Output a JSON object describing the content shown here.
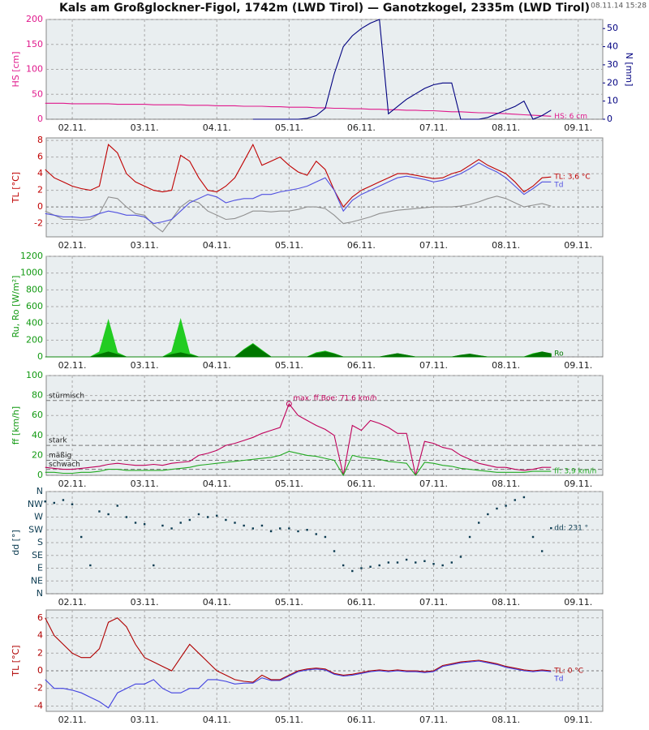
{
  "chart_data": {
    "type": "multi-panel",
    "title": "Kals am Großglockner-Figol, 1742m (LWD Tirol) — Ganotzkogel, 2335m (LWD Tirol)",
    "timestamp": "08.11.14 15:28",
    "xlim": [
      1.64,
      9.34
    ],
    "xticks": [
      {
        "value": 2,
        "label": "02.11."
      },
      {
        "value": 3,
        "label": "03.11."
      },
      {
        "value": 4,
        "label": "04.11."
      },
      {
        "value": 5,
        "label": "05.11."
      },
      {
        "value": 6,
        "label": "06.11."
      },
      {
        "value": 7,
        "label": "07.11."
      },
      {
        "value": 8,
        "label": "08.11."
      },
      {
        "value": 9,
        "label": "09.11."
      }
    ],
    "x": [
      1.625,
      1.75,
      1.875,
      2,
      2.125,
      2.25,
      2.375,
      2.5,
      2.625,
      2.75,
      2.875,
      3,
      3.125,
      3.25,
      3.375,
      3.5,
      3.625,
      3.75,
      3.875,
      4,
      4.125,
      4.25,
      4.375,
      4.5,
      4.625,
      4.75,
      4.875,
      5,
      5.125,
      5.25,
      5.375,
      5.5,
      5.625,
      5.75,
      5.875,
      6,
      6.125,
      6.25,
      6.375,
      6.5,
      6.625,
      6.75,
      6.875,
      7,
      7.125,
      7.25,
      7.375,
      7.5,
      7.625,
      7.75,
      7.875,
      8,
      8.125,
      8.25,
      8.375,
      8.5,
      8.625
    ],
    "grid": true,
    "panels": [
      {
        "type": "line",
        "ylabel": "HS [cm]",
        "color": "#e0198c",
        "ylim": [
          0,
          200
        ],
        "yticks": [
          0,
          50,
          100,
          150,
          200
        ],
        "y2label": "N [mm]",
        "y2color": "#000080",
        "y2lim": [
          0,
          55
        ],
        "y2ticks": [
          0,
          10,
          20,
          30,
          40,
          50
        ],
        "series": [
          {
            "name": "HS: 6 cm",
            "color": "#e0198c",
            "values": [
              32,
              32,
              32,
              31,
              31,
              31,
              31,
              31,
              30,
              30,
              30,
              30,
              29,
              29,
              29,
              29,
              28,
              28,
              28,
              27,
              27,
              27,
              26,
              26,
              26,
              25,
              25,
              24,
              24,
              24,
              23,
              23,
              22,
              22,
              21,
              21,
              20,
              20,
              19,
              19,
              18,
              18,
              17,
              17,
              16,
              15,
              15,
              14,
              13,
              13,
              12,
              11,
              10,
              9,
              8,
              7,
              6
            ]
          },
          {
            "color": "#000080",
            "axis": "y2",
            "values": [
              null,
              null,
              null,
              null,
              null,
              null,
              null,
              null,
              null,
              null,
              null,
              null,
              null,
              null,
              null,
              null,
              null,
              null,
              null,
              null,
              null,
              null,
              null,
              0,
              0,
              0,
              0,
              0,
              0,
              0.5,
              2,
              6,
              25,
              40,
              46,
              50,
              53,
              55,
              3,
              7,
              11,
              14,
              17,
              19,
              20,
              20,
              0,
              0,
              0,
              1,
              3,
              5,
              7,
              10,
              0,
              2,
              5
            ]
          }
        ]
      },
      {
        "type": "line",
        "ylabel": "TL [°C]",
        "color": "#c00000",
        "ylim": [
          -3.6,
          8.3
        ],
        "yticks": [
          -2,
          0,
          2,
          4,
          6,
          8
        ],
        "series": [
          {
            "color": "#909090",
            "values": [
              -0.5,
              -1.0,
              -1.5,
              -1.5,
              -1.6,
              -1.5,
              -0.8,
              1.2,
              1.0,
              0.0,
              -0.8,
              -1.0,
              -2.2,
              -3.0,
              -1.5,
              0.0,
              0.8,
              0.5,
              -0.5,
              -1.0,
              -1.5,
              -1.4,
              -1.0,
              -0.5,
              -0.5,
              -0.6,
              -0.5,
              -0.5,
              -0.3,
              0.0,
              0.0,
              -0.2,
              -1.0,
              -2.0,
              -1.8,
              -1.5,
              -1.2,
              -0.8,
              -0.6,
              -0.4,
              -0.3,
              -0.2,
              -0.1,
              0.0,
              0.0,
              0.0,
              0.1,
              0.3,
              0.6,
              1.0,
              1.3,
              1.0,
              0.5,
              0.0,
              0.2,
              0.4,
              0.1
            ]
          },
          {
            "name": "TL: 3,6 °C",
            "color": "#c00000",
            "values": [
              4.5,
              3.5,
              3.0,
              2.5,
              2.2,
              2.0,
              2.5,
              7.5,
              6.5,
              4.0,
              3.0,
              2.5,
              2.0,
              1.8,
              2.0,
              6.2,
              5.5,
              3.5,
              2.0,
              1.8,
              2.5,
              3.5,
              5.5,
              7.5,
              5.0,
              5.5,
              6.0,
              5.0,
              4.2,
              3.8,
              5.5,
              4.5,
              2.0,
              0.0,
              1.2,
              2.0,
              2.5,
              3.0,
              3.5,
              4.0,
              4.0,
              3.8,
              3.6,
              3.4,
              3.5,
              4.0,
              4.3,
              5.0,
              5.7,
              5.0,
              4.5,
              4.0,
              3.0,
              1.8,
              2.5,
              3.5,
              3.6
            ]
          },
          {
            "name": "Td",
            "color": "#5050e0",
            "values": [
              -0.8,
              -1.0,
              -1.2,
              -1.2,
              -1.3,
              -1.2,
              -0.8,
              -0.5,
              -0.7,
              -1.0,
              -1.0,
              -1.2,
              -2.0,
              -1.8,
              -1.5,
              -0.5,
              0.5,
              1.0,
              1.5,
              1.2,
              0.5,
              0.8,
              1.0,
              1.0,
              1.5,
              1.5,
              1.8,
              2.0,
              2.2,
              2.5,
              3.0,
              3.5,
              2.0,
              -0.5,
              0.8,
              1.5,
              2.0,
              2.5,
              3.0,
              3.5,
              3.7,
              3.5,
              3.3,
              3.0,
              3.2,
              3.6,
              4.0,
              4.6,
              5.3,
              4.7,
              4.2,
              3.5,
              2.5,
              1.5,
              2.2,
              3.0,
              3.0
            ]
          }
        ]
      },
      {
        "type": "area",
        "ylabel": "Ru, Ro [W/m²]",
        "color": "#119911",
        "ylim": [
          0,
          1200
        ],
        "yticks": [
          0,
          200,
          400,
          600,
          800,
          1000,
          1200
        ],
        "series": [
          {
            "color": "#22cc22",
            "values": [
              0,
              0,
              0,
              0,
              0,
              0,
              60,
              440,
              50,
              0,
              0,
              0,
              0,
              0,
              60,
              450,
              40,
              0,
              0,
              0,
              0,
              0,
              90,
              160,
              80,
              0,
              0,
              0,
              0,
              0,
              50,
              70,
              40,
              0,
              0,
              0,
              0,
              0,
              20,
              40,
              20,
              0,
              0,
              0,
              0,
              0,
              20,
              30,
              15,
              0,
              0,
              0,
              0,
              0,
              40,
              60,
              30
            ]
          },
          {
            "name": "Ro",
            "color": "#007700",
            "values": [
              0,
              0,
              0,
              0,
              0,
              0,
              30,
              60,
              30,
              0,
              0,
              0,
              0,
              0,
              30,
              50,
              25,
              0,
              0,
              0,
              0,
              0,
              80,
              150,
              70,
              0,
              0,
              0,
              0,
              0,
              40,
              60,
              35,
              0,
              0,
              0,
              0,
              0,
              20,
              40,
              20,
              0,
              0,
              0,
              0,
              0,
              20,
              35,
              15,
              0,
              0,
              0,
              0,
              0,
              30,
              60,
              40
            ]
          }
        ]
      },
      {
        "type": "line",
        "ylabel": "ff [km/h]",
        "color": "#119911",
        "ylim": [
          0,
          100
        ],
        "yticks": [
          0,
          20,
          40,
          60,
          80,
          100
        ],
        "levels": [
          {
            "label": "stürmisch",
            "value": 75
          },
          {
            "label": "stark",
            "value": 30
          },
          {
            "label": "mäßig",
            "value": 15
          },
          {
            "label": "schwach",
            "value": 6
          }
        ],
        "max_marker": {
          "label": "max. ff.Boe: 71,6 km/h",
          "x": 5,
          "y": 71.6,
          "color": "#c0005a"
        },
        "series": [
          {
            "color": "#c0005a",
            "values": [
              8,
              7,
              6,
              6,
              7,
              8,
              9,
              11,
              12,
              11,
              10,
              10,
              11,
              10,
              12,
              13,
              14,
              20,
              22,
              25,
              30,
              32,
              35,
              38,
              42,
              45,
              48,
              71.6,
              60,
              55,
              50,
              46,
              40,
              0,
              50,
              45,
              55,
              52,
              48,
              42,
              42,
              0,
              34,
              32,
              28,
              26,
              20,
              16,
              12,
              10,
              8,
              8,
              6,
              5,
              6,
              8,
              8
            ]
          },
          {
            "name": "ff: 3,9 km/h",
            "color": "#22aa22",
            "values": [
              3,
              3,
              2,
              2,
              3,
              3,
              4,
              6,
              6,
              5,
              5,
              5,
              5,
              5,
              6,
              7,
              8,
              10,
              11,
              12,
              13,
              14,
              15,
              16,
              17,
              18,
              20,
              24,
              22,
              20,
              19,
              17,
              15,
              0,
              20,
              18,
              17,
              16,
              14,
              13,
              12,
              0,
              13,
              12,
              10,
              9,
              7,
              6,
              5,
              4,
              3,
              3,
              3,
              3,
              4,
              4,
              4
            ]
          }
        ]
      },
      {
        "type": "scatter",
        "ylabel": "dd [°]",
        "color": "#0a3a50",
        "ylim": [
          0,
          360
        ],
        "yticks": [
          {
            "value": 0,
            "label": "N"
          },
          {
            "value": 45,
            "label": "NE"
          },
          {
            "value": 90,
            "label": "E"
          },
          {
            "value": 135,
            "label": "SE"
          },
          {
            "value": 180,
            "label": "S"
          },
          {
            "value": 225,
            "label": "SW"
          },
          {
            "value": 270,
            "label": "W"
          },
          {
            "value": 315,
            "label": "NW"
          },
          {
            "value": 360,
            "label": "N"
          }
        ],
        "series": [
          {
            "name": "dd: 231 °",
            "color": "#0a3a50",
            "values": [
              325,
              320,
              330,
              315,
              200,
              100,
              290,
              280,
              310,
              270,
              250,
              245,
              100,
              240,
              230,
              250,
              260,
              280,
              270,
              275,
              260,
              250,
              240,
              230,
              240,
              220,
              230,
              230,
              220,
              225,
              210,
              200,
              150,
              100,
              80,
              90,
              95,
              100,
              110,
              110,
              120,
              110,
              115,
              105,
              100,
              110,
              130,
              200,
              250,
              280,
              300,
              310,
              330,
              340,
              200,
              150,
              231
            ]
          }
        ]
      },
      {
        "type": "line",
        "ylabel": "TL [°C]",
        "color": "#b00000",
        "ylim": [
          -4.6,
          6.9
        ],
        "yticks": [
          -4,
          -2,
          0,
          2,
          4,
          6
        ],
        "series": [
          {
            "name": "TL: 0 °C",
            "color": "#b00000",
            "values": [
              6.0,
              4.0,
              3.0,
              2.0,
              1.5,
              1.5,
              2.5,
              5.5,
              6.0,
              5.0,
              3.0,
              1.5,
              1.0,
              0.5,
              0.0,
              1.5,
              3.0,
              2.0,
              1.0,
              0.0,
              -0.5,
              -1.0,
              -1.2,
              -1.3,
              -0.5,
              -1.0,
              -1.0,
              -0.5,
              0.0,
              0.2,
              0.3,
              0.2,
              -0.3,
              -0.5,
              -0.4,
              -0.2,
              0.0,
              0.1,
              0.0,
              0.1,
              0.0,
              0.0,
              -0.1,
              0.0,
              0.6,
              0.8,
              1.0,
              1.1,
              1.2,
              1.0,
              0.8,
              0.5,
              0.3,
              0.1,
              0.0,
              0.1,
              0.0
            ]
          },
          {
            "name": "Td",
            "color": "#4040e0",
            "values": [
              -1.0,
              -2.0,
              -2.0,
              -2.2,
              -2.5,
              -3.0,
              -3.5,
              -4.2,
              -2.5,
              -2.0,
              -1.5,
              -1.5,
              -1.0,
              -2.0,
              -2.5,
              -2.5,
              -2.0,
              -2.0,
              -1.0,
              -1.0,
              -1.2,
              -1.5,
              -1.4,
              -1.4,
              -0.8,
              -1.1,
              -1.1,
              -0.6,
              -0.1,
              0.1,
              0.2,
              0.1,
              -0.4,
              -0.6,
              -0.5,
              -0.3,
              -0.1,
              0.0,
              -0.1,
              0.0,
              -0.1,
              -0.1,
              -0.2,
              -0.1,
              0.5,
              0.7,
              0.9,
              1.0,
              1.1,
              0.9,
              0.7,
              0.4,
              0.2,
              0.0,
              -0.1,
              0.0,
              -0.1
            ]
          }
        ]
      }
    ]
  }
}
